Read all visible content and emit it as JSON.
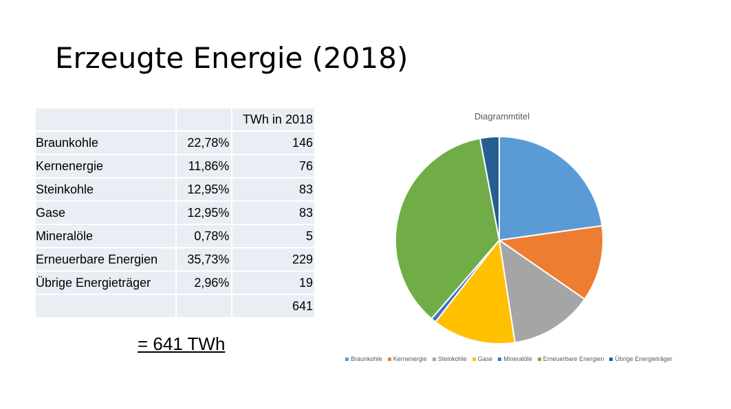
{
  "slide": {
    "title": "Erzeugte Energie (2018)",
    "total": "= 641 TWh"
  },
  "table": {
    "header": [
      "",
      "",
      "TWh in 2018"
    ],
    "rows": [
      [
        "Braunkohle",
        "22,78%",
        "146"
      ],
      [
        "Kernenergie",
        "11,86%",
        "76"
      ],
      [
        "Steinkohle",
        "12,95%",
        "83"
      ],
      [
        "Gase",
        "12,95%",
        "83"
      ],
      [
        "Mineralöle",
        "0,78%",
        "5"
      ],
      [
        "Erneuerbare Energien",
        "35,73%",
        "229"
      ],
      [
        "Übrige Energieträger",
        "2,96%",
        "19"
      ],
      [
        "",
        "",
        "641"
      ]
    ]
  },
  "chart_data": {
    "type": "pie",
    "title": "Diagrammtitel",
    "categories": [
      "Braunkohle",
      "Kernenergie",
      "Steinkohle",
      "Gase",
      "Mineralöle",
      "Erneuerbare Energien",
      "Übrige Energieträger"
    ],
    "values": [
      146,
      76,
      83,
      83,
      5,
      229,
      19
    ],
    "colors": [
      "#5b9bd5",
      "#ed7d31",
      "#a5a5a5",
      "#ffc000",
      "#4472c4",
      "#70ad47",
      "#255e91"
    ],
    "legend": "bottom"
  }
}
